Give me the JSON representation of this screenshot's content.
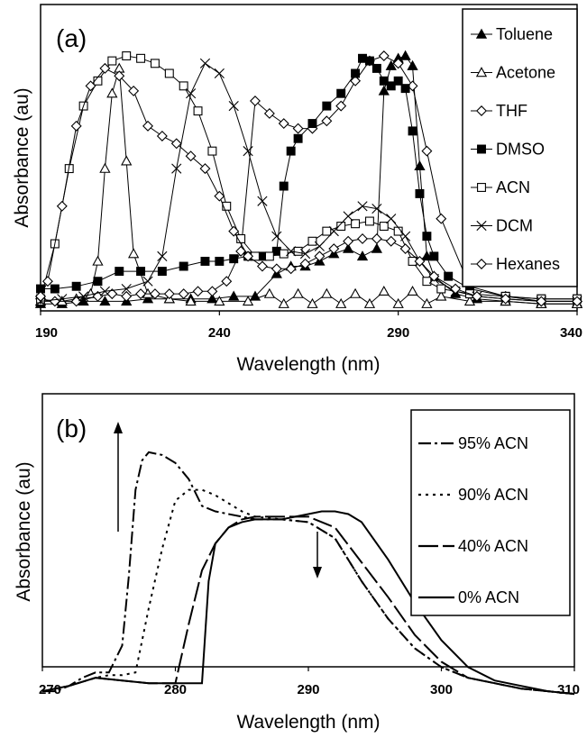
{
  "chart_data": [
    {
      "type": "line",
      "panel_label": "(a)",
      "xlabel": "Wavelength (nm)",
      "ylabel": "Absorbance (au)",
      "xlim": [
        190,
        340
      ],
      "ylim": [
        0,
        1
      ],
      "xticks": [
        190,
        240,
        290,
        340
      ],
      "legend_position": "top-right",
      "series": [
        {
          "name": "Toluene",
          "marker": "filled-triangle",
          "x": [
            190,
            196,
            202,
            208,
            214,
            220,
            226,
            232,
            238,
            244,
            250,
            256,
            260,
            264,
            268,
            272,
            276,
            280,
            284,
            286,
            288,
            290,
            292,
            294,
            296,
            298,
            300,
            306,
            312,
            320,
            330,
            340
          ],
          "y": [
            0.01,
            0.01,
            0.02,
            0.02,
            0.02,
            0.03,
            0.03,
            0.03,
            0.03,
            0.04,
            0.04,
            0.13,
            0.16,
            0.16,
            0.18,
            0.21,
            0.23,
            0.2,
            0.23,
            0.86,
            0.96,
            0.99,
            1.0,
            0.96,
            0.56,
            0.2,
            0.12,
            0.05,
            0.03,
            0.02,
            0.01,
            0.01
          ]
        },
        {
          "name": "Acetone",
          "marker": "open-triangle",
          "x": [
            190,
            196,
            200,
            204,
            206,
            208,
            210,
            212,
            214,
            216,
            220,
            226,
            232,
            240,
            248,
            254,
            258,
            262,
            266,
            270,
            274,
            278,
            282,
            286,
            290,
            294,
            298,
            302,
            310,
            320,
            330,
            340
          ],
          "y": [
            0.02,
            0.02,
            0.03,
            0.05,
            0.18,
            0.55,
            0.85,
            0.95,
            0.58,
            0.21,
            0.05,
            0.03,
            0.02,
            0.02,
            0.02,
            0.05,
            0.01,
            0.05,
            0.01,
            0.05,
            0.01,
            0.05,
            0.01,
            0.06,
            0.01,
            0.06,
            0.01,
            0.04,
            0.02,
            0.02,
            0.01,
            0.01
          ]
        },
        {
          "name": "THF",
          "marker": "open-diamond",
          "x": [
            190,
            194,
            200,
            206,
            210,
            214,
            218,
            222,
            226,
            230,
            234,
            238,
            242,
            246,
            250,
            254,
            258,
            262,
            266,
            270,
            274,
            278,
            282,
            286,
            290,
            294,
            298,
            302,
            310,
            320,
            330,
            340
          ],
          "y": [
            0.03,
            0.02,
            0.02,
            0.04,
            0.05,
            0.04,
            0.05,
            0.05,
            0.05,
            0.05,
            0.06,
            0.06,
            0.1,
            0.22,
            0.82,
            0.77,
            0.73,
            0.71,
            0.71,
            0.74,
            0.8,
            0.9,
            0.98,
            1.0,
            0.97,
            0.88,
            0.62,
            0.35,
            0.08,
            0.04,
            0.02,
            0.02
          ]
        },
        {
          "name": "DMSO",
          "marker": "filled-square",
          "x": [
            190,
            194,
            200,
            206,
            212,
            218,
            224,
            230,
            236,
            240,
            244,
            248,
            252,
            256,
            258,
            260,
            262,
            266,
            270,
            274,
            278,
            280,
            282,
            284,
            286,
            288,
            290,
            292,
            294,
            296,
            298,
            300,
            304,
            310,
            320,
            330,
            340
          ],
          "y": [
            0.07,
            0.07,
            0.08,
            0.1,
            0.14,
            0.14,
            0.14,
            0.16,
            0.18,
            0.18,
            0.19,
            0.2,
            0.2,
            0.22,
            0.48,
            0.62,
            0.67,
            0.73,
            0.8,
            0.85,
            0.93,
            0.99,
            0.98,
            0.95,
            0.9,
            0.88,
            0.9,
            0.87,
            0.7,
            0.45,
            0.28,
            0.2,
            0.12,
            0.07,
            0.04,
            0.03,
            0.03
          ]
        },
        {
          "name": "ACN",
          "marker": "open-square",
          "x": [
            190,
            194,
            198,
            202,
            206,
            210,
            214,
            218,
            222,
            226,
            230,
            234,
            238,
            242,
            246,
            250,
            254,
            258,
            262,
            266,
            270,
            274,
            278,
            282,
            286,
            290,
            294,
            298,
            302,
            310,
            320,
            330,
            340
          ],
          "y": [
            0.03,
            0.25,
            0.55,
            0.8,
            0.9,
            0.98,
            1.0,
            0.99,
            0.97,
            0.93,
            0.88,
            0.78,
            0.62,
            0.4,
            0.27,
            0.2,
            0.2,
            0.21,
            0.22,
            0.26,
            0.3,
            0.32,
            0.33,
            0.34,
            0.32,
            0.3,
            0.18,
            0.1,
            0.07,
            0.05,
            0.04,
            0.03,
            0.03
          ]
        },
        {
          "name": "DCM",
          "marker": "cross",
          "x": [
            190,
            196,
            202,
            208,
            214,
            220,
            224,
            228,
            232,
            236,
            240,
            244,
            248,
            252,
            256,
            260,
            264,
            268,
            272,
            276,
            280,
            284,
            288,
            292,
            296,
            300,
            306,
            312,
            320,
            330,
            340
          ],
          "y": [
            0.02,
            0.03,
            0.04,
            0.06,
            0.07,
            0.1,
            0.2,
            0.55,
            0.85,
            0.97,
            0.93,
            0.8,
            0.62,
            0.42,
            0.28,
            0.22,
            0.21,
            0.24,
            0.3,
            0.36,
            0.4,
            0.39,
            0.35,
            0.28,
            0.18,
            0.11,
            0.06,
            0.04,
            0.03,
            0.02,
            0.02
          ]
        },
        {
          "name": "Hexanes",
          "marker": "open-diamond",
          "x": [
            190,
            192,
            196,
            200,
            204,
            208,
            212,
            216,
            220,
            224,
            228,
            232,
            236,
            240,
            244,
            248,
            252,
            256,
            260,
            264,
            268,
            272,
            276,
            280,
            284,
            288,
            292,
            296,
            300,
            306,
            312,
            320,
            330,
            340
          ],
          "y": [
            0.04,
            0.1,
            0.4,
            0.72,
            0.88,
            0.95,
            0.92,
            0.86,
            0.72,
            0.68,
            0.65,
            0.6,
            0.55,
            0.44,
            0.3,
            0.2,
            0.16,
            0.15,
            0.15,
            0.17,
            0.2,
            0.23,
            0.26,
            0.27,
            0.27,
            0.26,
            0.23,
            0.18,
            0.12,
            0.07,
            0.04,
            0.03,
            0.02,
            0.02
          ]
        }
      ]
    },
    {
      "type": "line",
      "panel_label": "(b)",
      "xlabel": "Wavelength (nm)",
      "ylabel": "Absorbance (au)",
      "xlim": [
        270,
        310
      ],
      "ylim": [
        0,
        1
      ],
      "xticks": [
        270,
        280,
        290,
        300,
        310
      ],
      "legend_position": "top-right",
      "series": [
        {
          "name": "95% ACN",
          "dash": "14,4,3,4",
          "x": [
            270,
            271,
            272,
            273,
            274,
            275,
            276,
            276.5,
            277,
            277.5,
            278,
            279,
            280,
            281,
            282,
            283,
            284,
            285,
            286,
            288,
            290,
            292,
            294,
            296,
            298,
            300,
            302,
            304,
            306,
            308,
            310
          ],
          "y": [
            0.07,
            0.07,
            0.09,
            0.12,
            0.14,
            0.14,
            0.24,
            0.5,
            0.82,
            0.93,
            0.96,
            0.95,
            0.92,
            0.86,
            0.76,
            0.74,
            0.73,
            0.72,
            0.71,
            0.71,
            0.7,
            0.64,
            0.48,
            0.34,
            0.23,
            0.16,
            0.12,
            0.1,
            0.08,
            0.07,
            0.06
          ]
        },
        {
          "name": "90% ACN",
          "dash": "3,5",
          "x": [
            270,
            272,
            274,
            275,
            276,
            277,
            278,
            279,
            280,
            281,
            282,
            283,
            284,
            285,
            286,
            288,
            290,
            292,
            294,
            296,
            298,
            300,
            302,
            304,
            306,
            308,
            310
          ],
          "y": [
            0.07,
            0.09,
            0.12,
            0.13,
            0.13,
            0.14,
            0.38,
            0.6,
            0.78,
            0.82,
            0.82,
            0.8,
            0.77,
            0.74,
            0.72,
            0.71,
            0.7,
            0.64,
            0.48,
            0.34,
            0.23,
            0.16,
            0.12,
            0.1,
            0.08,
            0.07,
            0.06
          ]
        },
        {
          "name": "40% ACN",
          "dash": "22,5",
          "x": [
            270,
            272,
            274,
            276,
            278,
            280,
            281,
            282,
            283,
            284,
            285,
            286,
            288,
            290,
            292,
            294,
            296,
            298,
            300,
            302,
            304,
            306,
            308,
            310
          ],
          "y": [
            0.07,
            0.09,
            0.12,
            0.11,
            0.1,
            0.1,
            0.32,
            0.52,
            0.62,
            0.68,
            0.71,
            0.72,
            0.72,
            0.72,
            0.68,
            0.55,
            0.42,
            0.28,
            0.18,
            0.12,
            0.1,
            0.08,
            0.07,
            0.06
          ]
        },
        {
          "name": "0% ACN",
          "dash": "",
          "x": [
            270,
            272,
            274,
            276,
            278,
            280,
            281,
            282,
            282.5,
            283,
            284,
            285,
            286,
            288,
            290,
            291,
            292,
            293,
            294,
            296,
            298,
            300,
            302,
            304,
            306,
            308,
            310
          ],
          "y": [
            0.07,
            0.09,
            0.12,
            0.11,
            0.1,
            0.1,
            0.1,
            0.1,
            0.48,
            0.62,
            0.68,
            0.7,
            0.71,
            0.71,
            0.73,
            0.74,
            0.74,
            0.73,
            0.7,
            0.56,
            0.4,
            0.26,
            0.16,
            0.11,
            0.09,
            0.07,
            0.06
          ]
        }
      ]
    }
  ]
}
